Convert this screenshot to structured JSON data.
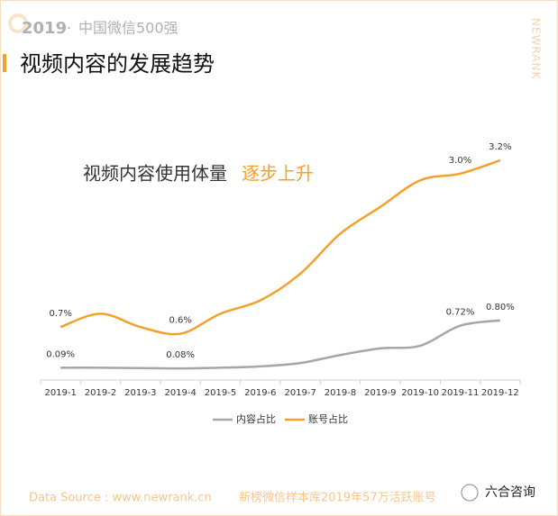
{
  "header": {
    "year": "2019",
    "subtitle": "中国微信500强",
    "title": "视频内容的发展趋势",
    "brand": "NEWRANK"
  },
  "chart_data": {
    "type": "line",
    "annotation": {
      "text": "视频内容使用体量",
      "highlight": "逐步上升"
    },
    "categories": [
      "2019-1",
      "2019-2",
      "2019-3",
      "2019-4",
      "2019-5",
      "2019-6",
      "2019-7",
      "2019-8",
      "2019-9",
      "2019-10",
      "2019-11",
      "2019-12"
    ],
    "series": [
      {
        "name": "内容占比",
        "color": "#a6a6a6",
        "values": [
          0.09,
          0.09,
          0.085,
          0.08,
          0.09,
          0.11,
          0.16,
          0.28,
          0.38,
          0.42,
          0.72,
          0.8
        ],
        "value_labels": [
          "0.09%",
          null,
          null,
          "0.08%",
          null,
          null,
          null,
          null,
          null,
          null,
          "0.72%",
          "0.80%"
        ]
      },
      {
        "name": "账号占比",
        "color": "#f5a02a",
        "values": [
          0.7,
          0.9,
          0.7,
          0.6,
          0.9,
          1.1,
          1.5,
          2.1,
          2.5,
          2.9,
          3.0,
          3.2
        ],
        "value_labels": [
          "0.7%",
          null,
          null,
          "0.6%",
          null,
          null,
          null,
          null,
          null,
          null,
          "3.0%",
          "3.2%"
        ]
      }
    ]
  },
  "footer": {
    "source": "Data Source : www.newrank.cn",
    "note": "新榜微信样本库2019年57万活跃账号",
    "watermark": "六合咨询"
  }
}
